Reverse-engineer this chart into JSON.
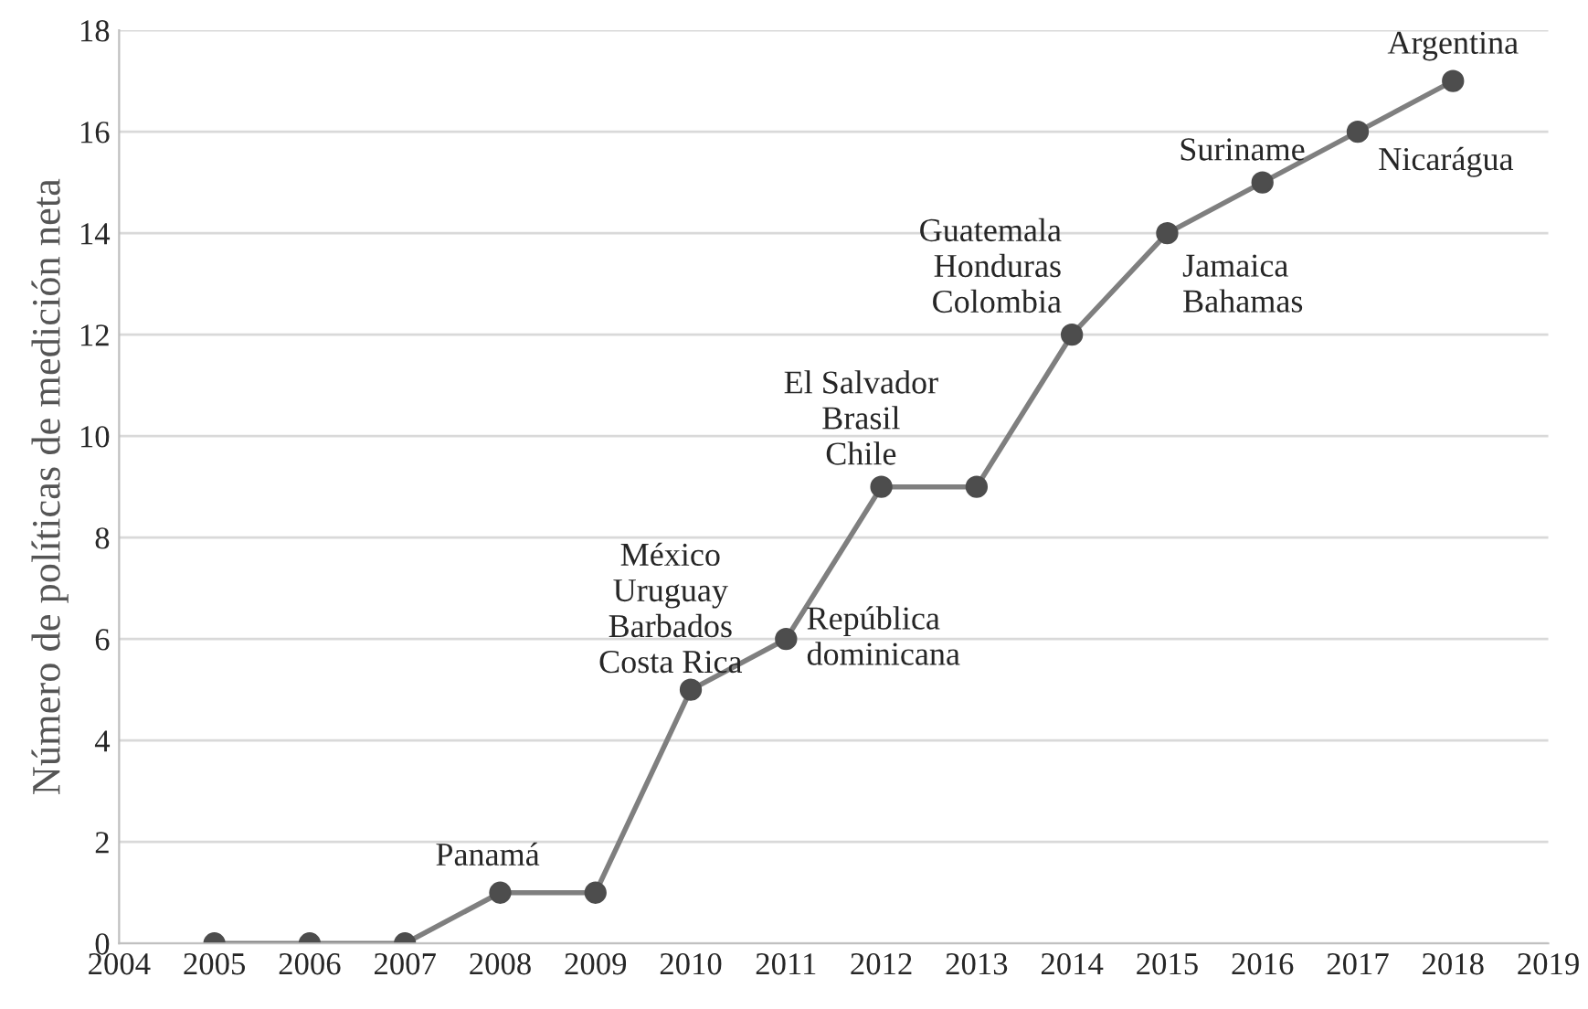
{
  "chart_data": {
    "type": "line",
    "ylabel": "Número de políticas de medición neta",
    "x": [
      2005,
      2006,
      2007,
      2008,
      2009,
      2010,
      2011,
      2012,
      2013,
      2014,
      2015,
      2016,
      2017,
      2018
    ],
    "series": [
      {
        "color": "#7f7f7f",
        "values": [
          0,
          0,
          0,
          1,
          1,
          5,
          6,
          9,
          9,
          12,
          14,
          15,
          16,
          17
        ]
      }
    ],
    "xlim": [
      2004,
      2019
    ],
    "xticks": [
      2004,
      2005,
      2006,
      2007,
      2008,
      2009,
      2010,
      2011,
      2012,
      2013,
      2014,
      2015,
      2016,
      2017,
      2018,
      2019
    ],
    "ylim": [
      0,
      18
    ],
    "yticks": [
      0,
      2,
      4,
      6,
      8,
      10,
      12,
      14,
      16,
      18
    ],
    "grid": "y",
    "marker": "circle",
    "line_style": "solid",
    "legend": false,
    "annotations": [
      {
        "text": "Panamá",
        "x": 2008,
        "y": 1
      },
      {
        "text": "México\nUruguay\nBarbados\nCosta Rica",
        "x": 2010,
        "y": 5
      },
      {
        "text": "República\ndominicana",
        "x": 2011,
        "y": 6
      },
      {
        "text": "El Salvador\nBrasil\nChile",
        "x": 2012,
        "y": 9
      },
      {
        "text": "Guatemala\nHonduras\nColombia",
        "x": 2014,
        "y": 12
      },
      {
        "text": "Jamaica\nBahamas",
        "x": 2015,
        "y": 14
      },
      {
        "text": "Suriname",
        "x": 2016,
        "y": 15
      },
      {
        "text": "Nicarágua",
        "x": 2017,
        "y": 16
      },
      {
        "text": "Argentina",
        "x": 2018,
        "y": 17
      }
    ]
  }
}
